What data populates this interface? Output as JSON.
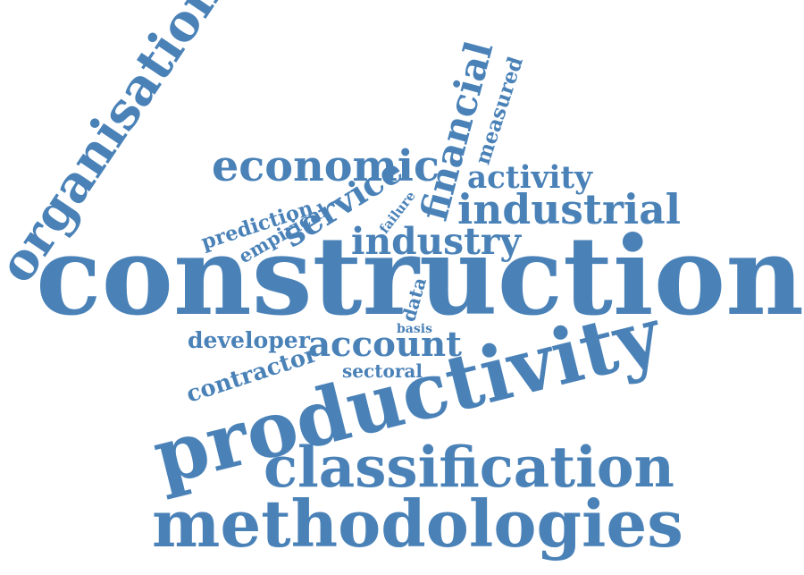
{
  "cloud": {
    "color": "#4a82b8",
    "words": [
      {
        "text": "construction"
      },
      {
        "text": "productivity"
      },
      {
        "text": "methodologies"
      },
      {
        "text": "classification"
      },
      {
        "text": "organisation"
      },
      {
        "text": "economic"
      },
      {
        "text": "industrial"
      },
      {
        "text": "financial"
      },
      {
        "text": "industry"
      },
      {
        "text": "activity"
      },
      {
        "text": "service"
      },
      {
        "text": "account"
      },
      {
        "text": "developer"
      },
      {
        "text": "contractor"
      },
      {
        "text": "prediction"
      },
      {
        "text": "empirical"
      },
      {
        "text": "measured"
      },
      {
        "text": "sectoral"
      },
      {
        "text": "failure"
      },
      {
        "text": "data"
      },
      {
        "text": "basis"
      }
    ]
  }
}
